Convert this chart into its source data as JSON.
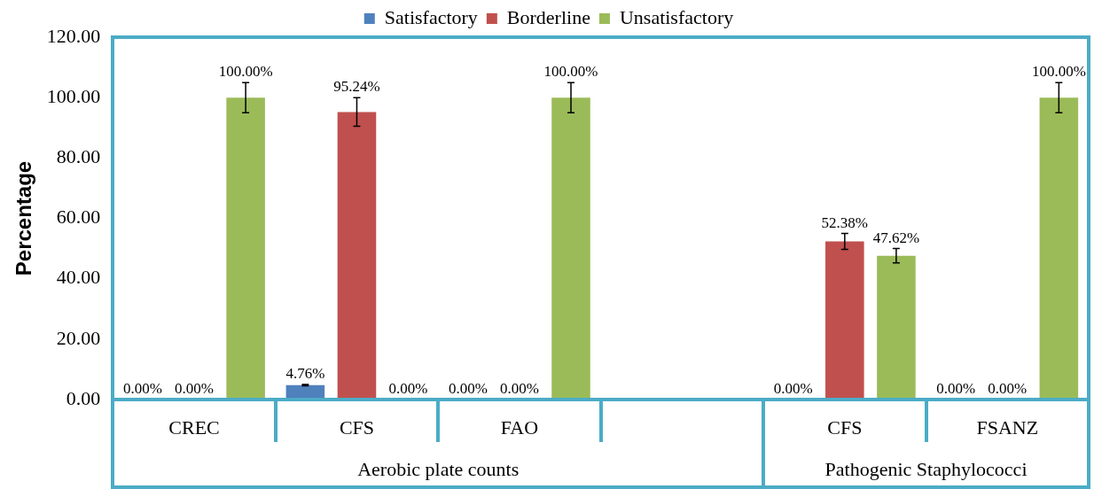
{
  "chart_data": {
    "type": "bar",
    "ylabel": "Percentage",
    "categories": [
      "CREC",
      "CFS",
      "FAO",
      null,
      "CFS",
      "FSANZ"
    ],
    "annotations": [
      "Aerobic plate counts",
      "Pathogenic Staphylococci"
    ],
    "series": [
      {
        "name": "Satisfactory",
        "color": "#4f81bd",
        "values": [
          0,
          4.76,
          0,
          null,
          0,
          0
        ],
        "value_labels": [
          "0.00%",
          "4.76%",
          "0.00%",
          null,
          "0.00%",
          "0.00%"
        ],
        "errors": [
          null,
          0.24,
          null,
          null,
          null,
          null
        ]
      },
      {
        "name": "Borderline",
        "color": "#c0504d",
        "values": [
          0,
          95.24,
          0,
          null,
          52.38,
          0
        ],
        "value_labels": [
          "0.00%",
          "95.24%",
          "0.00%",
          null,
          "52.38%",
          "0.00%"
        ],
        "errors": [
          null,
          4.76,
          null,
          null,
          2.62,
          null
        ]
      },
      {
        "name": "Unsatisfactory",
        "color": "#9bbb59",
        "values": [
          100,
          0,
          100,
          null,
          47.62,
          100
        ],
        "value_labels": [
          "100.00%",
          "0.00%",
          "100.00%",
          null,
          "47.62%",
          "100.00%"
        ],
        "errors": [
          5,
          null,
          5,
          null,
          2.38,
          5
        ]
      }
    ],
    "ylim": [
      0,
      120
    ],
    "yticks": [
      {
        "value": 0,
        "label": "0.00"
      },
      {
        "value": 20,
        "label": "20.00"
      },
      {
        "value": 40,
        "label": "40.00"
      },
      {
        "value": 60,
        "label": "60.00"
      },
      {
        "value": 80,
        "label": "80.00"
      },
      {
        "value": 100,
        "label": "100.00"
      },
      {
        "value": 120,
        "label": "120.00"
      }
    ],
    "grid": false,
    "legend": "top"
  }
}
